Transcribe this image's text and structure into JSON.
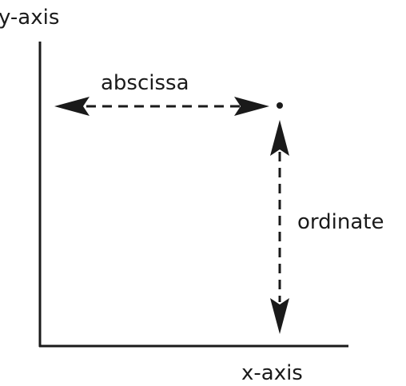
{
  "labels": {
    "y_axis": "y-axis",
    "x_axis": "x-axis",
    "abscissa": "abscissa",
    "ordinate": "ordinate"
  },
  "colors": {
    "ink": "#1a1a1a",
    "background": "#ffffff"
  }
}
